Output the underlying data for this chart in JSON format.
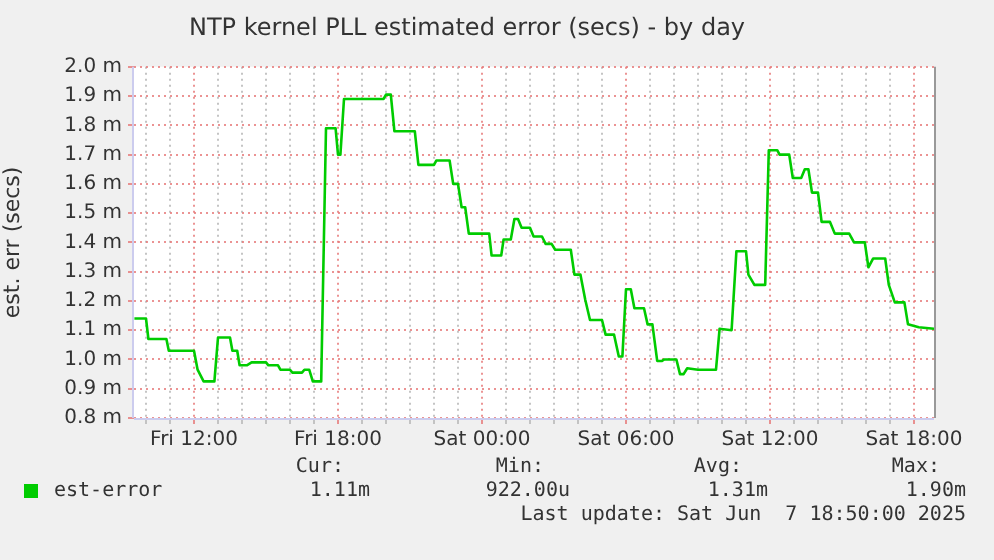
{
  "chart_data": {
    "type": "line",
    "title": "NTP kernel PLL estimated error (secs) - by day",
    "ylabel": "est. err (secs)",
    "x": [
      "2025-06-06T09:31",
      "2025-06-06T10:00",
      "2025-06-06T10:06",
      "2025-06-06T10:51",
      "2025-06-06T10:57",
      "2025-06-06T12:00",
      "2025-06-06T12:09",
      "2025-06-06T12:24",
      "2025-06-06T12:51",
      "2025-06-06T13:00",
      "2025-06-06T13:30",
      "2025-06-06T13:36",
      "2025-06-06T13:48",
      "2025-06-06T13:54",
      "2025-06-06T14:12",
      "2025-06-06T14:24",
      "2025-06-06T15:00",
      "2025-06-06T15:06",
      "2025-06-06T15:30",
      "2025-06-06T15:36",
      "2025-06-06T16:00",
      "2025-06-06T16:06",
      "2025-06-06T16:30",
      "2025-06-06T16:36",
      "2025-06-06T16:48",
      "2025-06-06T16:57",
      "2025-06-06T17:18",
      "2025-06-06T17:30",
      "2025-06-06T17:54",
      "2025-06-06T18:00",
      "2025-06-06T18:06",
      "2025-06-06T18:15",
      "2025-06-06T19:54",
      "2025-06-06T20:00",
      "2025-06-06T20:12",
      "2025-06-06T20:21",
      "2025-06-06T21:12",
      "2025-06-06T21:21",
      "2025-06-06T22:00",
      "2025-06-06T22:06",
      "2025-06-06T22:39",
      "2025-06-06T22:48",
      "2025-06-06T23:00",
      "2025-06-06T23:09",
      "2025-06-06T23:18",
      "2025-06-06T23:27",
      "2025-06-07T00:18",
      "2025-06-07T00:24",
      "2025-06-07T00:48",
      "2025-06-07T00:54",
      "2025-06-07T01:12",
      "2025-06-07T01:21",
      "2025-06-07T01:30",
      "2025-06-07T01:39",
      "2025-06-07T02:00",
      "2025-06-07T02:09",
      "2025-06-07T02:30",
      "2025-06-07T02:39",
      "2025-06-07T02:54",
      "2025-06-07T03:03",
      "2025-06-07T03:42",
      "2025-06-07T03:51",
      "2025-06-07T04:06",
      "2025-06-07T04:18",
      "2025-06-07T04:30",
      "2025-06-07T05:00",
      "2025-06-07T05:09",
      "2025-06-07T05:30",
      "2025-06-07T05:42",
      "2025-06-07T05:51",
      "2025-06-07T06:00",
      "2025-06-07T06:12",
      "2025-06-07T06:21",
      "2025-06-07T06:45",
      "2025-06-07T06:54",
      "2025-06-07T07:06",
      "2025-06-07T07:18",
      "2025-06-07T07:30",
      "2025-06-07T07:36",
      "2025-06-07T08:06",
      "2025-06-07T08:15",
      "2025-06-07T08:24",
      "2025-06-07T08:33",
      "2025-06-07T09:00",
      "2025-06-07T09:45",
      "2025-06-07T09:54",
      "2025-06-07T10:24",
      "2025-06-07T10:36",
      "2025-06-07T11:00",
      "2025-06-07T11:06",
      "2025-06-07T11:21",
      "2025-06-07T11:48",
      "2025-06-07T11:57",
      "2025-06-07T12:18",
      "2025-06-07T12:24",
      "2025-06-07T12:48",
      "2025-06-07T12:57",
      "2025-06-07T13:18",
      "2025-06-07T13:27",
      "2025-06-07T13:36",
      "2025-06-07T13:45",
      "2025-06-07T14:00",
      "2025-06-07T14:09",
      "2025-06-07T14:30",
      "2025-06-07T14:42",
      "2025-06-07T15:18",
      "2025-06-07T15:30",
      "2025-06-07T15:57",
      "2025-06-07T16:06",
      "2025-06-07T16:18",
      "2025-06-07T16:48",
      "2025-06-07T16:57",
      "2025-06-07T17:12",
      "2025-06-07T17:36",
      "2025-06-07T17:45",
      "2025-06-07T18:12",
      "2025-06-07T18:50"
    ],
    "series": [
      {
        "name": "est-error",
        "color": "#00cc00",
        "values": [
          1.14,
          1.14,
          1.07,
          1.07,
          1.03,
          1.03,
          0.965,
          0.925,
          0.925,
          1.075,
          1.075,
          1.03,
          1.03,
          0.98,
          0.98,
          0.99,
          0.99,
          0.98,
          0.98,
          0.965,
          0.965,
          0.955,
          0.955,
          0.965,
          0.965,
          0.925,
          0.925,
          1.79,
          1.79,
          1.7,
          1.7,
          1.89,
          1.89,
          1.905,
          1.905,
          1.78,
          1.78,
          1.665,
          1.665,
          1.68,
          1.68,
          1.6,
          1.6,
          1.52,
          1.52,
          1.43,
          1.43,
          1.355,
          1.355,
          1.41,
          1.41,
          1.48,
          1.48,
          1.45,
          1.45,
          1.42,
          1.42,
          1.395,
          1.395,
          1.375,
          1.375,
          1.29,
          1.29,
          1.205,
          1.135,
          1.135,
          1.085,
          1.085,
          1.01,
          1.01,
          1.24,
          1.24,
          1.175,
          1.175,
          1.12,
          1.12,
          0.995,
          0.995,
          1.0,
          1.0,
          0.95,
          0.95,
          0.97,
          0.965,
          0.965,
          1.105,
          1.1,
          1.37,
          1.37,
          1.29,
          1.255,
          1.255,
          1.715,
          1.715,
          1.7,
          1.7,
          1.62,
          1.62,
          1.65,
          1.65,
          1.57,
          1.57,
          1.47,
          1.47,
          1.43,
          1.43,
          1.4,
          1.4,
          1.315,
          1.345,
          1.345,
          1.255,
          1.195,
          1.195,
          1.12,
          1.11,
          1.105
        ]
      }
    ],
    "xlim": [
      "2025-06-06T09:30",
      "2025-06-07T18:50"
    ],
    "xticks": [
      {
        "value": "2025-06-06T10:00",
        "label": null
      },
      {
        "value": "2025-06-06T11:00",
        "label": null
      },
      {
        "value": "2025-06-06T12:00",
        "label": "Fri 12:00"
      },
      {
        "value": "2025-06-06T13:00",
        "label": null
      },
      {
        "value": "2025-06-06T14:00",
        "label": null
      },
      {
        "value": "2025-06-06T15:00",
        "label": null
      },
      {
        "value": "2025-06-06T16:00",
        "label": null
      },
      {
        "value": "2025-06-06T17:00",
        "label": null
      },
      {
        "value": "2025-06-06T18:00",
        "label": "Fri 18:00"
      },
      {
        "value": "2025-06-06T19:00",
        "label": null
      },
      {
        "value": "2025-06-06T20:00",
        "label": null
      },
      {
        "value": "2025-06-06T21:00",
        "label": null
      },
      {
        "value": "2025-06-06T22:00",
        "label": null
      },
      {
        "value": "2025-06-06T23:00",
        "label": null
      },
      {
        "value": "2025-06-07T00:00",
        "label": "Sat 00:00"
      },
      {
        "value": "2025-06-07T01:00",
        "label": null
      },
      {
        "value": "2025-06-07T02:00",
        "label": null
      },
      {
        "value": "2025-06-07T03:00",
        "label": null
      },
      {
        "value": "2025-06-07T04:00",
        "label": null
      },
      {
        "value": "2025-06-07T05:00",
        "label": null
      },
      {
        "value": "2025-06-07T06:00",
        "label": "Sat 06:00"
      },
      {
        "value": "2025-06-07T07:00",
        "label": null
      },
      {
        "value": "2025-06-07T08:00",
        "label": null
      },
      {
        "value": "2025-06-07T09:00",
        "label": null
      },
      {
        "value": "2025-06-07T10:00",
        "label": null
      },
      {
        "value": "2025-06-07T11:00",
        "label": null
      },
      {
        "value": "2025-06-07T12:00",
        "label": "Sat 12:00"
      },
      {
        "value": "2025-06-07T13:00",
        "label": null
      },
      {
        "value": "2025-06-07T14:00",
        "label": null
      },
      {
        "value": "2025-06-07T15:00",
        "label": null
      },
      {
        "value": "2025-06-07T16:00",
        "label": null
      },
      {
        "value": "2025-06-07T17:00",
        "label": null
      },
      {
        "value": "2025-06-07T18:00",
        "label": "Sat 18:00"
      }
    ],
    "ylim": [
      0.8,
      2.0
    ],
    "yticks": [
      {
        "value": 0.8,
        "label": "0.8 m"
      },
      {
        "value": 0.9,
        "label": "0.9 m"
      },
      {
        "value": 1.0,
        "label": "1.0 m"
      },
      {
        "value": 1.1,
        "label": "1.1 m"
      },
      {
        "value": 1.2,
        "label": "1.2 m"
      },
      {
        "value": 1.3,
        "label": "1.3 m"
      },
      {
        "value": 1.4,
        "label": "1.4 m"
      },
      {
        "value": 1.5,
        "label": "1.5 m"
      },
      {
        "value": 1.6,
        "label": "1.6 m"
      },
      {
        "value": 1.7,
        "label": "1.7 m"
      },
      {
        "value": 1.8,
        "label": "1.8 m"
      },
      {
        "value": 1.9,
        "label": "1.9 m"
      },
      {
        "value": 2.0,
        "label": "2.0 m"
      }
    ],
    "grid": true,
    "legend": "bottom left",
    "marker": "none",
    "line_style": "solid",
    "annotations": [
      "Cur:",
      "Min:",
      "Avg:",
      "Max:",
      "1.11m",
      "922.00u",
      "1.31m",
      "1.90m",
      "Last update: Sat Jun  7 18:50:00 2025"
    ]
  }
}
